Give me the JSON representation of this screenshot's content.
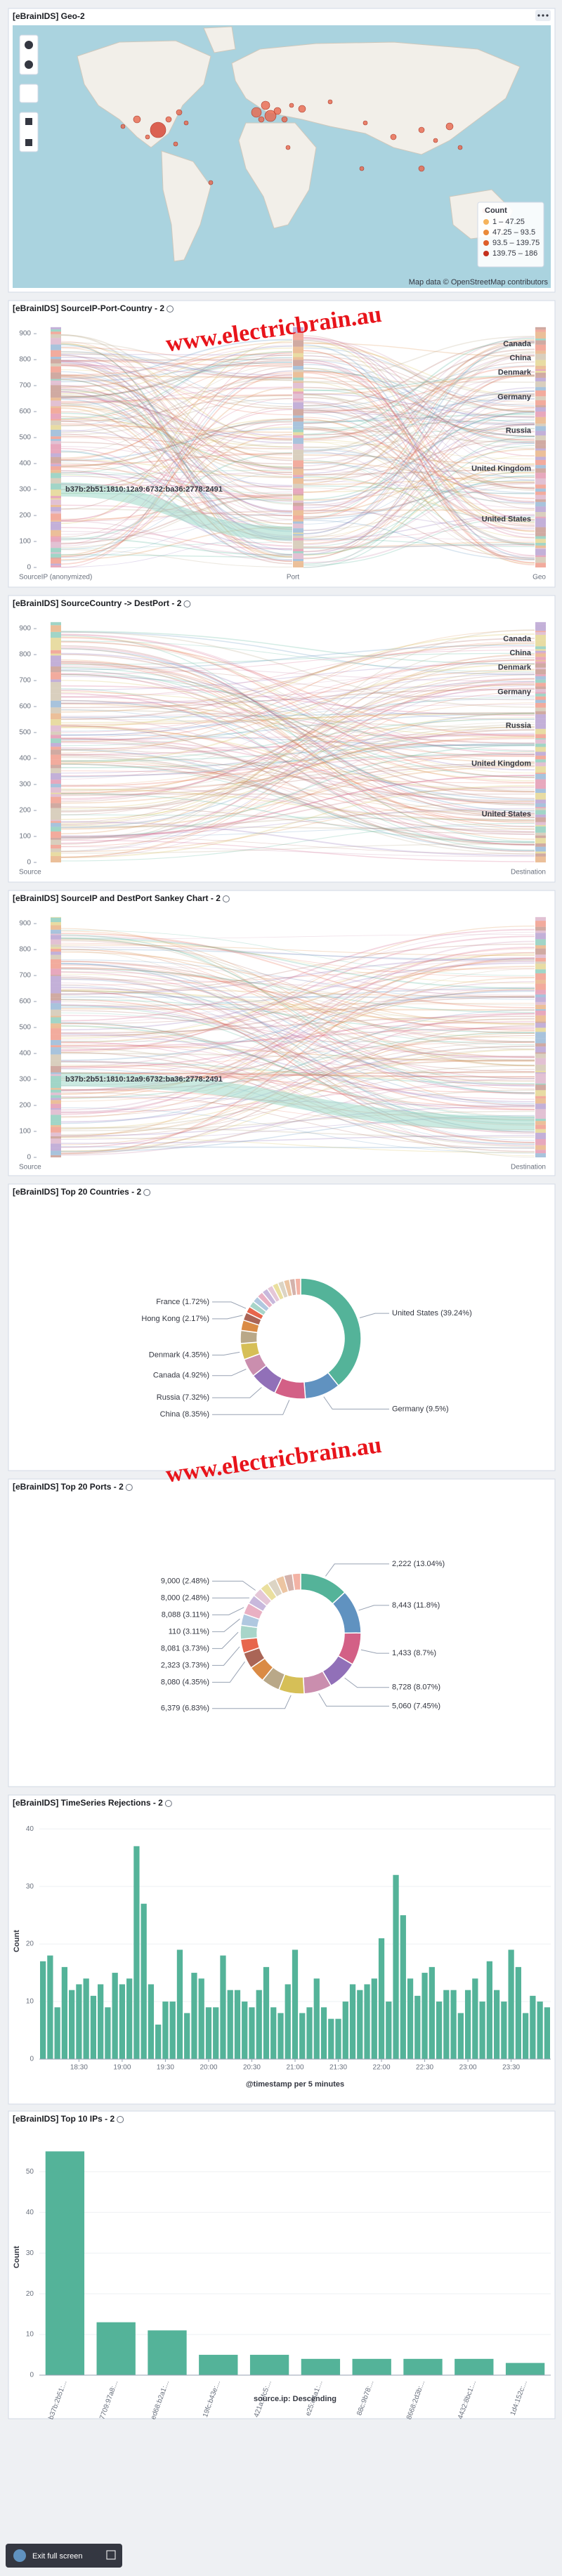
{
  "geo": {
    "title": "[eBrainIDS] Geo-2",
    "legend_title": "Count",
    "legend": [
      "1 – 47.25",
      "47.25 – 93.5",
      "93.5 – 139.75",
      "139.75 – 186"
    ],
    "attribution": "Map data © OpenStreetMap contributors"
  },
  "watermark": "www.electricbrain.au",
  "exit_button": "Exit full screen",
  "chart_data": [
    {
      "type": "sankey",
      "title": "[eBrainIDS] SourceIP-Port-Country - 2",
      "ylim": [
        0,
        930
      ],
      "yticks": [
        0,
        100,
        200,
        300,
        400,
        500,
        600,
        700,
        800,
        900
      ],
      "columns": [
        "SourceIP (anonymized)",
        "Port",
        "Geo"
      ],
      "node_labels": [
        "Canada",
        "China",
        "Denmark",
        "Germany",
        "Russia",
        "United Kingdom",
        "United States"
      ],
      "highlight": "b37b:2b51:1810:12a9:6732:ba36:2778:2491"
    },
    {
      "type": "sankey",
      "title": "[eBrainIDS] SourceCountry -> DestPort - 2",
      "ylim": [
        0,
        930
      ],
      "yticks": [
        0,
        100,
        200,
        300,
        400,
        500,
        600,
        700,
        800,
        900
      ],
      "columns": [
        "Source",
        "Destination"
      ],
      "node_labels": [
        "Canada",
        "China",
        "Denmark",
        "Germany",
        "Russia",
        "United Kingdom",
        "United States"
      ]
    },
    {
      "type": "sankey",
      "title": "[eBrainIDS] SourceIP and DestPort Sankey Chart - 2",
      "ylim": [
        0,
        930
      ],
      "yticks": [
        0,
        100,
        200,
        300,
        400,
        500,
        600,
        700,
        800,
        900
      ],
      "columns": [
        "Source",
        "Destination"
      ],
      "highlight": "b37b:2b51:1810:12a9:6732:ba36:2778:2491"
    },
    {
      "type": "donut",
      "title": "[eBrainIDS] Top 20 Countries - 2",
      "categories": [
        "United States (39.24%)",
        "Germany (9.5%)",
        "China (8.35%)",
        "Russia (7.32%)",
        "Canada (4.92%)",
        "Denmark (4.35%)",
        null,
        null,
        "Hong Kong (2.17%)",
        "France (1.72%)",
        null,
        null,
        null,
        null,
        null,
        null,
        null,
        null,
        null,
        null
      ],
      "values": [
        39.24,
        9.5,
        8.35,
        7.32,
        4.92,
        4.35,
        3.5,
        2.8,
        2.17,
        1.72,
        1.7,
        1.7,
        1.7,
        1.63,
        1.6,
        1.6,
        1.6,
        1.6,
        1.5,
        1.5
      ],
      "colors": [
        "#54b399",
        "#6092c0",
        "#d36086",
        "#9170b8",
        "#ca8eae",
        "#d6bf57",
        "#b9a888",
        "#da8b45",
        "#aa6556",
        "#e7664c",
        "#a8d5c9",
        "#b0c8e0",
        "#e9b0c3",
        "#c8b8dc",
        "#e5c7d7",
        "#eadf9e",
        "#dcd4c4",
        "#ecc5a2",
        "#d4b2ab",
        "#f3b3a5"
      ]
    },
    {
      "type": "donut",
      "title": "[eBrainIDS] Top 20 Ports - 2",
      "categories": [
        "2,222 (13.04%)",
        "8,443 (11.8%)",
        "1,433 (8.7%)",
        "8,728 (8.07%)",
        "5,060 (7.45%)",
        "6,379 (6.83%)",
        null,
        null,
        "8,080 (4.35%)",
        "2,323 (3.73%)",
        "8,081 (3.73%)",
        "110 (3.11%)",
        "8,088 (3.11%)",
        "8,000 (2.48%)",
        "9,000 (2.48%)",
        null,
        null,
        null,
        null,
        null
      ],
      "values": [
        13.04,
        11.8,
        8.7,
        8.07,
        7.45,
        6.83,
        5.0,
        4.5,
        4.35,
        3.73,
        3.73,
        3.11,
        3.11,
        2.48,
        2.48,
        2.4,
        2.4,
        2.3,
        2.3,
        2.22
      ],
      "colors": [
        "#54b399",
        "#6092c0",
        "#d36086",
        "#9170b8",
        "#ca8eae",
        "#d6bf57",
        "#b9a888",
        "#da8b45",
        "#aa6556",
        "#e7664c",
        "#a8d5c9",
        "#b0c8e0",
        "#e9b0c3",
        "#c8b8dc",
        "#e5c7d7",
        "#eadf9e",
        "#dcd4c4",
        "#ecc5a2",
        "#d4b2ab",
        "#f3b3a5"
      ]
    },
    {
      "type": "bar",
      "title": "[eBrainIDS] TimeSeries Rejections - 2",
      "color": "#54b399",
      "xlabel": "@timestamp per 5 minutes",
      "ylabel": "Count",
      "x": [
        "18:05",
        "18:10",
        "18:15",
        "18:20",
        "18:25",
        "18:30",
        "18:35",
        "18:40",
        "18:45",
        "18:50",
        "18:55",
        "19:00",
        "19:05",
        "19:10",
        "19:15",
        "19:20",
        "19:25",
        "19:30",
        "19:35",
        "19:40",
        "19:45",
        "19:50",
        "19:55",
        "20:00",
        "20:05",
        "20:10",
        "20:15",
        "20:20",
        "20:25",
        "20:30",
        "20:35",
        "20:40",
        "20:45",
        "20:50",
        "20:55",
        "21:00",
        "21:05",
        "21:10",
        "21:15",
        "21:20",
        "21:25",
        "21:30",
        "21:35",
        "21:40",
        "21:45",
        "21:50",
        "21:55",
        "22:00",
        "22:05",
        "22:10",
        "22:15",
        "22:20",
        "22:25",
        "22:30",
        "22:35",
        "22:40",
        "22:45",
        "22:50",
        "22:55",
        "23:00",
        "23:05",
        "23:10",
        "23:15",
        "23:20",
        "23:25",
        "23:30",
        "23:35",
        "23:40",
        "23:45",
        "23:50",
        "23:55"
      ],
      "values": [
        17,
        18,
        9,
        16,
        12,
        13,
        14,
        11,
        13,
        9,
        15,
        13,
        14,
        37,
        27,
        13,
        6,
        10,
        10,
        19,
        8,
        15,
        14,
        9,
        9,
        18,
        12,
        12,
        10,
        9,
        12,
        16,
        9,
        8,
        13,
        19,
        8,
        9,
        14,
        9,
        7,
        7,
        10,
        13,
        12,
        13,
        14,
        21,
        10,
        32,
        25,
        14,
        11,
        15,
        16,
        10,
        12,
        12,
        8,
        12,
        14,
        10,
        17,
        12,
        10,
        19,
        16,
        8,
        11,
        10,
        9
      ],
      "xticks": [
        "18:30",
        "19:00",
        "19:30",
        "20:00",
        "20:30",
        "21:00",
        "21:30",
        "22:00",
        "22:30",
        "23:00",
        "23:30"
      ],
      "ylim": [
        0,
        41
      ],
      "yticks": [
        0,
        10,
        20,
        30,
        40
      ]
    },
    {
      "type": "bar",
      "title": "[eBrainIDS] Top 10 IPs - 2",
      "color": "#54b399",
      "xlabel": "source.ip: Descending",
      "ylabel": "Count",
      "categories": [
        "b37b:2b51:...",
        "7709:97a8:...",
        "ed68:b2a1:...",
        "19fc:b43e:...",
        "421a:4fc5:...",
        "e25:e4a1:...",
        "88c:9b78:...",
        "8668:2d3b:...",
        "4432:8bc1:...",
        "1d4:152c:..."
      ],
      "values": [
        55,
        13,
        11,
        5,
        5,
        4,
        4,
        4,
        4,
        3
      ],
      "ylim": [
        0,
        58
      ],
      "yticks": [
        0,
        10,
        20,
        30,
        40,
        50
      ]
    }
  ]
}
